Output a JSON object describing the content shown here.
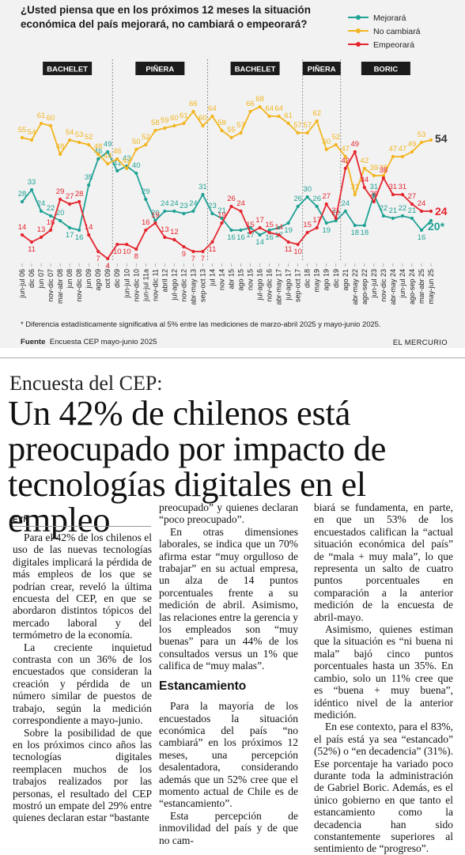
{
  "chart": {
    "question": "¿Usted piensa que en los próximos 12 meses la situación económica del país mejorará, no cambiará o empeorará?",
    "legend": [
      {
        "label": "Mejorará",
        "color": "#1fa195"
      },
      {
        "label": "No cambiará",
        "color": "#f2b51f"
      },
      {
        "label": "Empeorará",
        "color": "#e5252e"
      }
    ],
    "periods": [
      "BACHELET",
      "PIÑERA",
      "BACHELET",
      "PIÑERA",
      "BORIC"
    ],
    "note": "* Diferencia estadísticamente significativa al 5% entre las mediciones de marzo-abril 2025 y mayo-junio 2025.",
    "source_label": "Fuente",
    "source_text": "Encuesta CEP mayo-junio 2025",
    "brand": "EL MERCURIO"
  },
  "chart_data": {
    "type": "line",
    "title": "¿Usted piensa que en los próximos 12 meses la situación económica del país mejorará, no cambiará o empeorará?",
    "x": [
      "jun-jul 06",
      "dic 06",
      "jun 07",
      "nov-dic 07",
      "mar-abr 08",
      "jun 08",
      "nov-dic 08",
      "jun 09",
      "ago 09",
      "oct 09",
      "dic 09",
      "jun-jul 10",
      "nov-dic 10",
      "jun-jul 11a",
      "nov-dic 11",
      "abril 12",
      "jul-ago 12",
      "nov-dic 12",
      "abr-may 13",
      "sep-oct 13",
      "jul 14",
      "nov 14",
      "abr 15",
      "ago 15",
      "nov 15",
      "jul-ago 16",
      "nov-dic 16",
      "abr-may 17",
      "jul-ago 17",
      "sep-oct 17",
      "dic 18",
      "may 19",
      "ago 19",
      "dic 19",
      "ago 21",
      "abr-may 22",
      "ago-sep 22",
      "jun-jul 23",
      "nov-dic 23",
      "abr-may 24",
      "jun-jul 24",
      "ago-sep 24",
      "mar-abr 25",
      "may-jun 25"
    ],
    "series": [
      {
        "name": "Mejorará",
        "color": "#1fa195",
        "values": [
          28,
          33,
          24,
          22,
          20,
          17,
          16,
          35,
          46,
          49,
          41,
          43,
          40,
          29,
          20,
          24,
          24,
          23,
          24,
          31,
          23,
          21,
          16,
          16,
          17,
          14,
          16,
          17,
          19,
          26,
          30,
          26,
          19,
          20,
          24,
          18,
          18,
          31,
          22,
          21,
          22,
          21,
          16,
          20
        ]
      },
      {
        "name": "No cambiará",
        "color": "#f2b51f",
        "values": [
          55,
          54,
          61,
          60,
          48,
          54,
          53,
          52,
          48,
          44,
          46,
          42,
          50,
          52,
          58,
          59,
          60,
          61,
          66,
          60,
          64,
          58,
          55,
          57,
          66,
          68,
          64,
          64,
          61,
          57,
          57,
          62,
          50,
          52,
          47,
          31,
          42,
          39,
          39,
          47,
          47,
          49,
          53,
          54
        ]
      },
      {
        "name": "Empeorará",
        "color": "#e5252e",
        "values": [
          14,
          11,
          13,
          16,
          29,
          27,
          28,
          14,
          7,
          4,
          10,
          10,
          8,
          16,
          19,
          13,
          12,
          9,
          7,
          7,
          11,
          19,
          26,
          24,
          15,
          17,
          15,
          14,
          11,
          10,
          15,
          17,
          27,
          21,
          42,
          49,
          34,
          28,
          38,
          31,
          31,
          27,
          24,
          24
        ]
      }
    ],
    "endpoint_labels": {
      "Mejorará": "20*",
      "No cambiará": "54",
      "Empeorará": "24"
    },
    "ylim": [
      0,
      75
    ],
    "grid": false,
    "legend_position": "top-right"
  },
  "article": {
    "kicker": "Encuesta del CEP:",
    "headline": "Un 42% de chilenos está preocupado por impacto de tecnologías digitales en el empleo",
    "byline": "EYN",
    "col1": [
      "Para el 42% de los chilenos el uso de las nuevas tecnologías digitales implicará la pérdida de más empleos de los que se podrían crear, reveló la última encuesta del CEP, en que se abordaron distintos tópicos del mercado laboral y del termómetro de la economía.",
      "La creciente inquietud contrasta con un 36% de los encuestados que consideran la creación y pérdida de un número similar de puestos de trabajo, según la medición correspondiente a mayo-junio.",
      "Sobre la posibilidad de que en los próximos cinco años las tecnologías digitales reemplacen muchos de los trabajos realizados por las personas, el resultado del CEP mostró un empate del 29% entre quienes declaran estar “bastante"
    ],
    "col2_a": [
      "preocupado” y quienes declaran “poco preocupado”.",
      "En otras dimensiones laborales, se indica que un 70% afirma estar “muy orgulloso de trabajar” en su actual empresa, un alza de 14 puntos porcentuales frente a su medición de abril. Asimismo, las relaciones entre la gerencia y los empleados son “muy buenas” para un 44% de los consultados versus un 1% que califica de “muy malas”."
    ],
    "subhead": "Estancamiento",
    "col2_b": [
      "Para la mayoría de los encuestados la situación económica del país “no cambiará” en los próximos 12 meses, una percepción desalentadora, considerando además que un 52% cree que el momento actual de Chile es de “estancamiento”.",
      "Esta percepción de inmovilidad del país y de que no cam-"
    ],
    "col3": [
      "biará se fundamenta, en parte, en que un 53% de los encuestados califican la “actual situación económica del país” de “mala + muy mala”, lo que representa un salto de cuatro puntos porcentuales en comparación a la anterior medición de la encuesta de abril-mayo.",
      "Asimismo, quienes estiman que la situación es “ni buena ni mala” bajó cinco puntos porcentuales hasta un 35%. En cambio, solo un 11% cree que es “buena + muy buena”, idéntico nivel de la anterior medición.",
      "En ese contexto, para el 83%, el país está ya sea “estancado” (52%) o “en decadencia” (31%). Ese porcentaje ha variado poco durante toda la administración de Gabriel Boric. Además, es el único gobierno en que tanto el estancamiento como la decadencia han sido constantemente superiores al sentimiento de “progreso”."
    ]
  }
}
